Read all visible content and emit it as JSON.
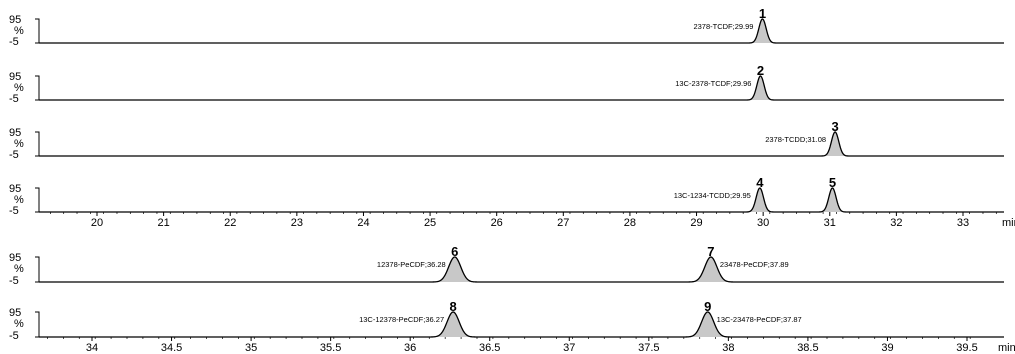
{
  "chart_data": [
    {
      "type": "line",
      "xunit": "min",
      "xlim": [
        19.1,
        33.6
      ],
      "xticks": [
        20,
        21,
        22,
        23,
        24,
        25,
        26,
        27,
        28,
        29,
        30,
        31,
        32,
        33
      ],
      "ylabel": "%",
      "yticks": [
        "95",
        "-5"
      ],
      "traces": [
        {
          "peaks": [
            {
              "number": "1",
              "label": "2378-TCDF;29.99",
              "rt": 29.99,
              "height": 95,
              "width": 0.055
            }
          ]
        },
        {
          "peaks": [
            {
              "number": "2",
              "label": "13C-2378-TCDF;29.96",
              "rt": 29.96,
              "height": 95,
              "width": 0.055
            }
          ]
        },
        {
          "peaks": [
            {
              "number": "3",
              "label": "2378-TCDD;31.08",
              "rt": 31.08,
              "height": 95,
              "width": 0.055
            }
          ]
        },
        {
          "peaks": [
            {
              "number": "4",
              "label": "13C-1234-TCDD;29.95",
              "rt": 29.95,
              "height": 95,
              "width": 0.055
            },
            {
              "number": "5",
              "label": "",
              "rt": 31.04,
              "height": 95,
              "width": 0.055
            }
          ]
        }
      ]
    },
    {
      "type": "line",
      "xunit": "min",
      "xlim": [
        33.62,
        39.6
      ],
      "xticks": [
        "34",
        "34.5",
        "35",
        "35.5",
        "36",
        "36.5",
        "37",
        "37.5",
        "38",
        "38.5",
        "39",
        "39.5"
      ],
      "ylabel": "%",
      "yticks": [
        "95",
        "-5"
      ],
      "traces": [
        {
          "peaks": [
            {
              "number": "6",
              "label": "12378-PeCDF;36.28",
              "rt": 36.28,
              "height": 95,
              "width": 0.038
            },
            {
              "number": "7",
              "label": "23478-PeCDF;37.89",
              "rt": 37.89,
              "height": 95,
              "width": 0.038
            }
          ]
        },
        {
          "peaks": [
            {
              "number": "8",
              "label": "13C-12378-PeCDF;36.27",
              "rt": 36.27,
              "height": 95,
              "width": 0.038
            },
            {
              "number": "9",
              "label": "13C-23478-PeCDF;37.87",
              "rt": 37.87,
              "height": 95,
              "width": 0.038
            }
          ]
        }
      ]
    }
  ]
}
